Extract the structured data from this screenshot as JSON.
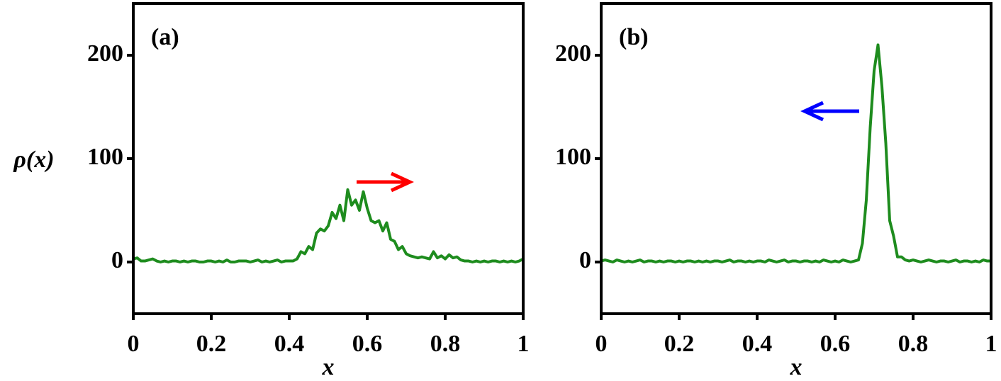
{
  "chart_data": [
    {
      "type": "line",
      "title": "(a)",
      "x_label": "x",
      "y_label": "ρ(x)",
      "xlim": [
        0,
        1
      ],
      "xticks": [
        0,
        0.2,
        0.4,
        0.6,
        0.8,
        1
      ],
      "ylim": [
        -50,
        250
      ],
      "yticks": [
        0,
        100,
        200
      ],
      "x": [
        0,
        0.01,
        0.02,
        0.03,
        0.04,
        0.05,
        0.06,
        0.07,
        0.08,
        0.09,
        0.1,
        0.11,
        0.12,
        0.13,
        0.14,
        0.15,
        0.16,
        0.17,
        0.18,
        0.19,
        0.2,
        0.21,
        0.22,
        0.23,
        0.24,
        0.25,
        0.26,
        0.27,
        0.28,
        0.29,
        0.3,
        0.31,
        0.32,
        0.33,
        0.34,
        0.35,
        0.36,
        0.37,
        0.38,
        0.39,
        0.4,
        0.41,
        0.42,
        0.43,
        0.44,
        0.45,
        0.46,
        0.47,
        0.48,
        0.49,
        0.5,
        0.51,
        0.52,
        0.53,
        0.54,
        0.55,
        0.56,
        0.57,
        0.58,
        0.59,
        0.6,
        0.61,
        0.62,
        0.63,
        0.64,
        0.65,
        0.66,
        0.67,
        0.68,
        0.69,
        0.7,
        0.71,
        0.72,
        0.73,
        0.74,
        0.75,
        0.76,
        0.77,
        0.78,
        0.79,
        0.8,
        0.81,
        0.82,
        0.83,
        0.84,
        0.85,
        0.86,
        0.87,
        0.88,
        0.89,
        0.9,
        0.91,
        0.92,
        0.93,
        0.94,
        0.95,
        0.96,
        0.97,
        0.98,
        0.99,
        1
      ],
      "series": [
        {
          "color": "#1e8c1e",
          "values": [
            3,
            4,
            1,
            1,
            2,
            3,
            1,
            0,
            1,
            0,
            1,
            1,
            0,
            1,
            0,
            1,
            1,
            0,
            0,
            1,
            1,
            0,
            1,
            0,
            2,
            0,
            0,
            1,
            1,
            1,
            0,
            1,
            2,
            0,
            1,
            0,
            1,
            2,
            0,
            1,
            1,
            1,
            3,
            10,
            8,
            15,
            12,
            28,
            32,
            30,
            35,
            48,
            42,
            55,
            40,
            70,
            55,
            60,
            50,
            68,
            52,
            40,
            38,
            40,
            30,
            38,
            22,
            20,
            12,
            15,
            8,
            6,
            5,
            4,
            5,
            4,
            3,
            10,
            4,
            6,
            3,
            7,
            4,
            5,
            2,
            1,
            1,
            0,
            1,
            0,
            1,
            0,
            1,
            1,
            0,
            1,
            0,
            1,
            0,
            1,
            3
          ]
        }
      ]
    },
    {
      "type": "line",
      "title": "(b)",
      "x_label": "x",
      "xlim": [
        0,
        1
      ],
      "xticks": [
        0,
        0.2,
        0.4,
        0.6,
        0.8,
        1
      ],
      "ylim": [
        -50,
        250
      ],
      "yticks": [
        0,
        100,
        200
      ],
      "x": [
        0,
        0.01,
        0.02,
        0.03,
        0.04,
        0.05,
        0.06,
        0.07,
        0.08,
        0.09,
        0.1,
        0.11,
        0.12,
        0.13,
        0.14,
        0.15,
        0.16,
        0.17,
        0.18,
        0.19,
        0.2,
        0.21,
        0.22,
        0.23,
        0.24,
        0.25,
        0.26,
        0.27,
        0.28,
        0.29,
        0.3,
        0.31,
        0.32,
        0.33,
        0.34,
        0.35,
        0.36,
        0.37,
        0.38,
        0.39,
        0.4,
        0.41,
        0.42,
        0.43,
        0.44,
        0.45,
        0.46,
        0.47,
        0.48,
        0.49,
        0.5,
        0.51,
        0.52,
        0.53,
        0.54,
        0.55,
        0.56,
        0.57,
        0.58,
        0.59,
        0.6,
        0.61,
        0.62,
        0.63,
        0.64,
        0.65,
        0.66,
        0.67,
        0.68,
        0.69,
        0.7,
        0.71,
        0.72,
        0.73,
        0.74,
        0.75,
        0.76,
        0.77,
        0.78,
        0.79,
        0.8,
        0.81,
        0.82,
        0.83,
        0.84,
        0.85,
        0.86,
        0.87,
        0.88,
        0.89,
        0.9,
        0.91,
        0.92,
        0.93,
        0.94,
        0.95,
        0.96,
        0.97,
        0.98,
        0.99,
        1
      ],
      "series": [
        {
          "color": "#1e8c1e",
          "values": [
            1,
            2,
            1,
            0,
            2,
            1,
            0,
            1,
            0,
            1,
            2,
            0,
            1,
            1,
            0,
            1,
            0,
            1,
            1,
            0,
            1,
            0,
            1,
            1,
            0,
            1,
            0,
            1,
            0,
            1,
            1,
            0,
            1,
            2,
            0,
            1,
            1,
            0,
            1,
            0,
            1,
            1,
            0,
            2,
            1,
            0,
            1,
            2,
            0,
            1,
            1,
            0,
            1,
            1,
            0,
            1,
            0,
            2,
            1,
            0,
            1,
            0,
            2,
            1,
            0,
            1,
            2,
            18,
            60,
            130,
            185,
            210,
            170,
            115,
            40,
            25,
            5,
            5,
            2,
            1,
            2,
            1,
            0,
            1,
            2,
            1,
            0,
            1,
            1,
            0,
            1,
            2,
            0,
            1,
            1,
            0,
            1,
            0,
            2,
            1,
            1
          ]
        }
      ]
    }
  ]
}
